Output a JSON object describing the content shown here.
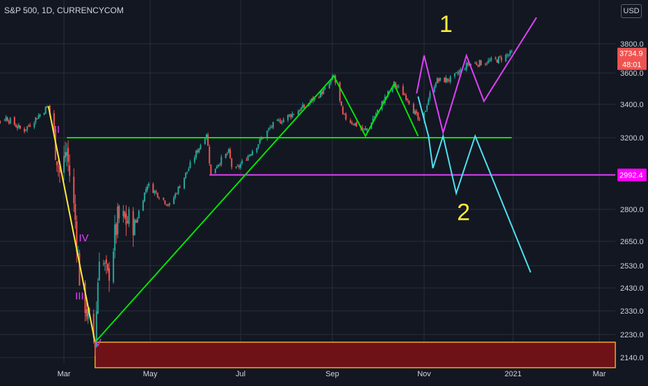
{
  "symbol": "S&P 500, 1D, CURRENCYCOM",
  "currency": "USD",
  "current_price": "3734.9",
  "countdown": "48:01",
  "level_label": "2992.4",
  "colors": {
    "background": "#131722",
    "up_candle": "#26a69a",
    "down_candle": "#ef5350",
    "grid": "#2a2e39",
    "yellow": "#ffeb3b",
    "green": "#00e600",
    "magenta": "#e040fb",
    "cyan": "#4de1f0",
    "zone_fill": "#6e1218",
    "zone_border": "#f5a623",
    "price_badge": "#ef5350",
    "level_badge": "#ff00ff"
  },
  "chart_data": {
    "type": "candlestick",
    "x_tick_labels": [
      "Mar",
      "May",
      "Jul",
      "Sep",
      "Nov",
      "2021",
      "Mar"
    ],
    "y_tick_labels": [
      "3800.0",
      "3600.0",
      "3400.0",
      "3200.0",
      "2800.0",
      "2650.0",
      "2530.0",
      "2430.0",
      "2330.0",
      "2230.0",
      "2140.0"
    ],
    "y_scale": "log",
    "price_path": [
      [
        "2020-01-02",
        3250
      ],
      [
        "2020-01-20",
        3320
      ],
      [
        "2020-02-01",
        3240
      ],
      [
        "2020-02-19",
        3390
      ],
      [
        "2020-02-27",
        3000
      ],
      [
        "2020-03-03",
        3120
      ],
      [
        "2020-03-09",
        2750
      ],
      [
        "2020-03-12",
        2480
      ],
      [
        "2020-03-18",
        2300
      ],
      [
        "2020-03-23",
        2200
      ],
      [
        "2020-03-26",
        2600
      ],
      [
        "2020-04-01",
        2470
      ],
      [
        "2020-04-08",
        2750
      ],
      [
        "2020-04-21",
        2740
      ],
      [
        "2020-04-29",
        2940
      ],
      [
        "2020-05-14",
        2820
      ],
      [
        "2020-05-27",
        3030
      ],
      [
        "2020-06-08",
        3230
      ],
      [
        "2020-06-11",
        2990
      ],
      [
        "2020-06-15",
        3050
      ],
      [
        "2020-06-23",
        3120
      ],
      [
        "2020-06-26",
        3000
      ],
      [
        "2020-07-13",
        3170
      ],
      [
        "2020-07-22",
        3270
      ],
      [
        "2020-08-12",
        3380
      ],
      [
        "2020-08-28",
        3500
      ],
      [
        "2020-09-02",
        3580
      ],
      [
        "2020-09-08",
        3330
      ],
      [
        "2020-09-23",
        3240
      ],
      [
        "2020-10-12",
        3530
      ],
      [
        "2020-10-21",
        3440
      ],
      [
        "2020-10-30",
        3270
      ],
      [
        "2020-11-04",
        3440
      ],
      [
        "2020-11-09",
        3550
      ],
      [
        "2020-11-20",
        3560
      ],
      [
        "2020-12-01",
        3660
      ],
      [
        "2020-12-10",
        3670
      ],
      [
        "2020-12-21",
        3690
      ],
      [
        "2020-12-31",
        3734.9
      ]
    ],
    "horizontal_levels": [
      {
        "price": 3200,
        "color": "green",
        "from": "2020-03-03",
        "to": "2020-12-31"
      },
      {
        "price": 2992.4,
        "color": "magenta",
        "from": "2020-06-10",
        "to": "2021-04-01"
      }
    ],
    "zone": {
      "top": 2200,
      "bottom": 2100,
      "from": "2020-03-23",
      "to": "2021-04-01"
    },
    "drawings": [
      {
        "color": "yellow",
        "points": [
          [
            "2020-02-19",
            3390
          ],
          [
            "2020-03-23",
            2200
          ]
        ]
      },
      {
        "color": "green",
        "points": [
          [
            "2020-03-23",
            2200
          ],
          [
            "2020-09-02",
            3580
          ],
          [
            "2020-09-23",
            3210
          ],
          [
            "2020-10-12",
            3530
          ],
          [
            "2020-10-28",
            3210
          ]
        ]
      },
      {
        "color": "magenta",
        "points": [
          [
            "2020-10-27",
            3470
          ],
          [
            "2020-11-01",
            3720
          ],
          [
            "2020-11-14",
            3230
          ],
          [
            "2020-11-30",
            3720
          ],
          [
            "2020-12-12",
            3420
          ],
          [
            "2021-01-17",
            3980
          ]
        ]
      },
      {
        "color": "cyan",
        "points": [
          [
            "2020-10-28",
            3450
          ],
          [
            "2020-11-04",
            3210
          ],
          [
            "2020-11-07",
            3030
          ],
          [
            "2020-11-14",
            3210
          ],
          [
            "2020-11-23",
            2890
          ],
          [
            "2020-12-06",
            3210
          ],
          [
            "2021-01-13",
            2500
          ]
        ]
      }
    ],
    "wave_labels": [
      {
        "text": "II",
        "date": "2020-02-25",
        "price": 3230,
        "color": "magenta"
      },
      {
        "text": "IV",
        "date": "2020-03-15",
        "price": 2650,
        "color": "magenta"
      },
      {
        "text": "III",
        "date": "2020-03-12",
        "price": 2380,
        "color": "magenta"
      },
      {
        "text": "V",
        "date": "2020-03-25",
        "price": 2185,
        "color": "magenta"
      },
      {
        "text": "1",
        "date": "2020-11-16",
        "price": 3880,
        "color": "yellow"
      },
      {
        "text": "2",
        "date": "2020-11-28",
        "price": 2750,
        "color": "yellow"
      }
    ]
  }
}
